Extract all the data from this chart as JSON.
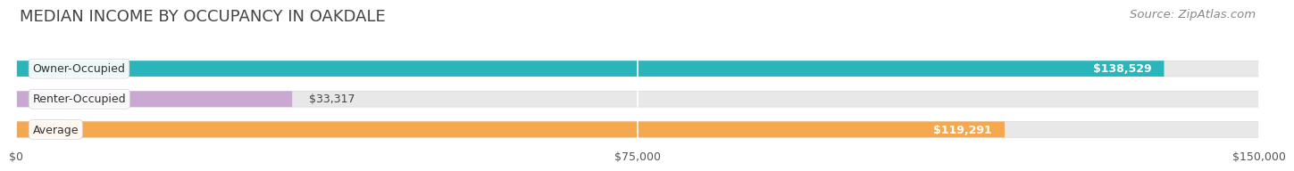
{
  "title": "MEDIAN INCOME BY OCCUPANCY IN OAKDALE",
  "source": "Source: ZipAtlas.com",
  "categories": [
    "Owner-Occupied",
    "Renter-Occupied",
    "Average"
  ],
  "values": [
    138529,
    33317,
    119291
  ],
  "bar_colors": [
    "#2ab5bb",
    "#c9a8d4",
    "#f5a84e"
  ],
  "bar_bg_color": "#e8e8e8",
  "value_labels": [
    "$138,529",
    "$33,317",
    "$119,291"
  ],
  "xlim": [
    0,
    150000
  ],
  "xticks": [
    0,
    75000,
    150000
  ],
  "xtick_labels": [
    "$0",
    "$75,000",
    "$150,000"
  ],
  "title_fontsize": 13,
  "source_fontsize": 9.5,
  "label_fontsize": 9,
  "value_fontsize": 9,
  "bar_height": 0.52,
  "background_color": "#ffffff",
  "bar_bg_border": "#d8d8d8"
}
